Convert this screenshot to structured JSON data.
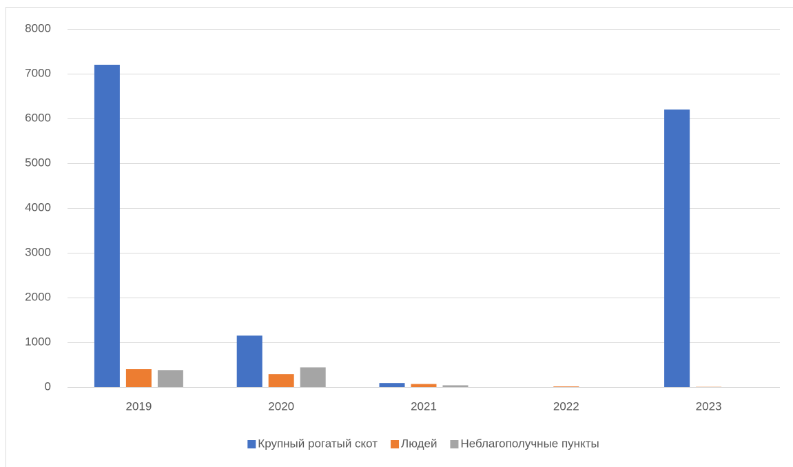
{
  "chart_data": {
    "type": "bar",
    "categories": [
      "2019",
      "2020",
      "2021",
      "2022",
      "2023"
    ],
    "series": [
      {
        "name": "Крупный рогатый скот",
        "color": "#4472c4",
        "values": [
          7200,
          1150,
          90,
          0,
          6200
        ]
      },
      {
        "name": "Людей",
        "color": "#ed7d31",
        "values": [
          400,
          290,
          70,
          15,
          5
        ]
      },
      {
        "name": "Неблагополучные пункты",
        "color": "#a5a5a5",
        "values": [
          380,
          440,
          40,
          0,
          0
        ]
      }
    ],
    "ylim": [
      0,
      8000
    ],
    "yticks": [
      0,
      1000,
      2000,
      3000,
      4000,
      5000,
      6000,
      7000,
      8000
    ],
    "grid": true,
    "legend": "bottom"
  }
}
